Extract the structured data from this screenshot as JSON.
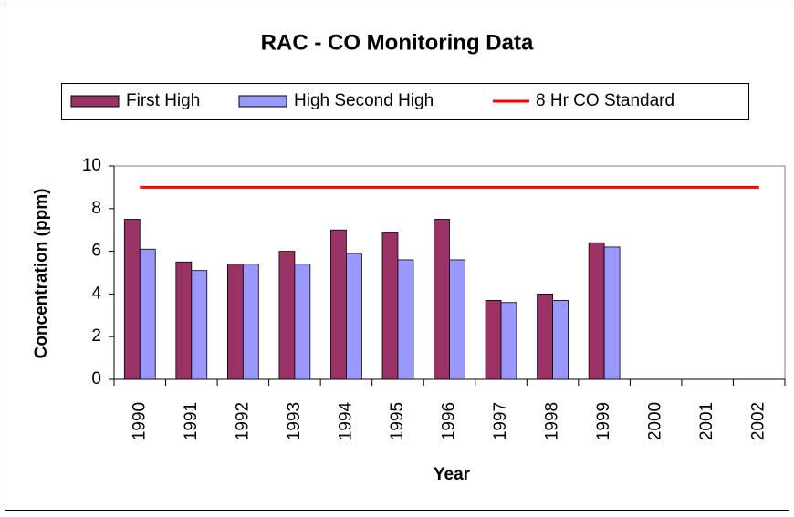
{
  "chart_data": {
    "type": "bar",
    "title": "RAC - CO Monitoring Data",
    "x_label": "Year",
    "y_label": "Concentration (ppm)",
    "categories": [
      "1990",
      "1991",
      "1992",
      "1993",
      "1994",
      "1995",
      "1996",
      "1997",
      "1998",
      "1999",
      "2000",
      "2001",
      "2002"
    ],
    "series": [
      {
        "name": "First High",
        "color": "#993366",
        "values": [
          7.5,
          5.5,
          5.4,
          6.0,
          7.0,
          6.9,
          7.5,
          3.7,
          4.0,
          6.4,
          null,
          null,
          null
        ]
      },
      {
        "name": "High Second High",
        "color": "#9999ff",
        "values": [
          6.1,
          5.1,
          5.4,
          5.4,
          5.9,
          5.6,
          5.6,
          3.6,
          3.7,
          6.2,
          null,
          null,
          null
        ]
      },
      {
        "name": "8 Hr CO Standard",
        "color": "#ff0000",
        "type": "line",
        "values": [
          9,
          9,
          9,
          9,
          9,
          9,
          9,
          9,
          9,
          9,
          9,
          9,
          9
        ]
      }
    ],
    "ylim": [
      0,
      10
    ],
    "yticks": [
      0,
      2,
      4,
      6,
      8,
      10
    ],
    "legend": "top",
    "grid": false
  }
}
